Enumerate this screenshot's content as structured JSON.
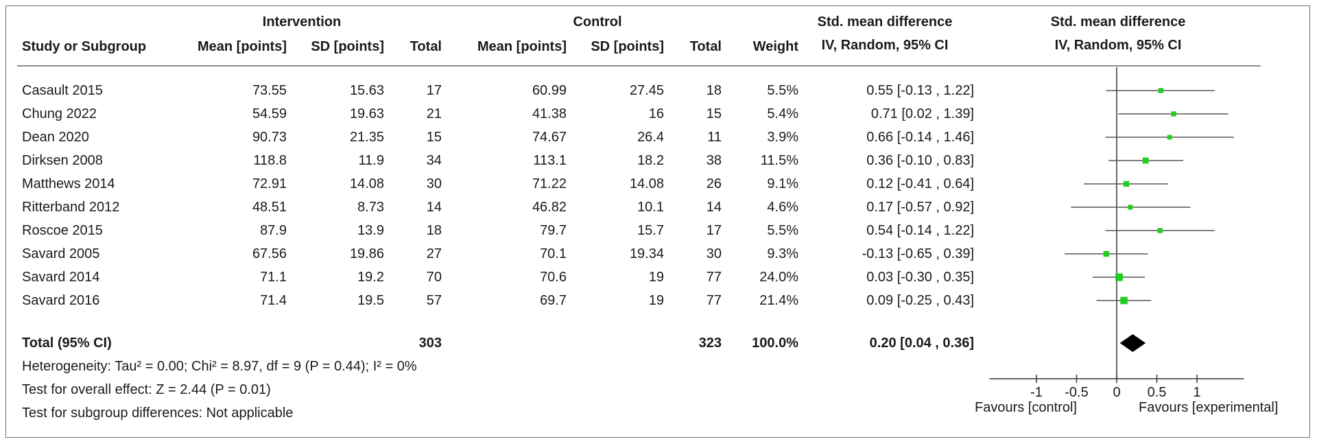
{
  "header": {
    "group_intervention": "Intervention",
    "group_control": "Control",
    "effect_title_line1": "Std. mean difference",
    "effect_title_line2": "IV, Random, 95% CI",
    "plot_title_line1": "Std. mean difference",
    "plot_title_line2": "IV, Random, 95% CI",
    "col_study": "Study or Subgroup",
    "col_int_mean": "Mean [points]",
    "col_int_sd": "SD [points]",
    "col_int_total": "Total",
    "col_ctl_mean": "Mean [points]",
    "col_ctl_sd": "SD [points]",
    "col_ctl_total": "Total",
    "col_weight": "Weight"
  },
  "studies": [
    {
      "name": "Casault 2015",
      "int_mean": "73.55",
      "int_sd": "15.63",
      "int_total": "17",
      "ctl_mean": "60.99",
      "ctl_sd": "27.45",
      "ctl_total": "18",
      "weight": "5.5%",
      "ci_text": "0.55 [-0.13 , 1.22]"
    },
    {
      "name": "Chung 2022",
      "int_mean": "54.59",
      "int_sd": "19.63",
      "int_total": "21",
      "ctl_mean": "41.38",
      "ctl_sd": "16",
      "ctl_total": "15",
      "weight": "5.4%",
      "ci_text": "0.71 [0.02 , 1.39]"
    },
    {
      "name": "Dean 2020",
      "int_mean": "90.73",
      "int_sd": "21.35",
      "int_total": "15",
      "ctl_mean": "74.67",
      "ctl_sd": "26.4",
      "ctl_total": "11",
      "weight": "3.9%",
      "ci_text": "0.66 [-0.14 , 1.46]"
    },
    {
      "name": "Dirksen 2008",
      "int_mean": "118.8",
      "int_sd": "11.9",
      "int_total": "34",
      "ctl_mean": "113.1",
      "ctl_sd": "18.2",
      "ctl_total": "38",
      "weight": "11.5%",
      "ci_text": "0.36 [-0.10 , 0.83]"
    },
    {
      "name": "Matthews 2014",
      "int_mean": "72.91",
      "int_sd": "14.08",
      "int_total": "30",
      "ctl_mean": "71.22",
      "ctl_sd": "14.08",
      "ctl_total": "26",
      "weight": "9.1%",
      "ci_text": "0.12 [-0.41 , 0.64]"
    },
    {
      "name": "Ritterband 2012",
      "int_mean": "48.51",
      "int_sd": "8.73",
      "int_total": "14",
      "ctl_mean": "46.82",
      "ctl_sd": "10.1",
      "ctl_total": "14",
      "weight": "4.6%",
      "ci_text": "0.17 [-0.57 , 0.92]"
    },
    {
      "name": "Roscoe 2015",
      "int_mean": "87.9",
      "int_sd": "13.9",
      "int_total": "18",
      "ctl_mean": "79.7",
      "ctl_sd": "15.7",
      "ctl_total": "17",
      "weight": "5.5%",
      "ci_text": "0.54 [-0.14 , 1.22]"
    },
    {
      "name": "Savard 2005",
      "int_mean": "67.56",
      "int_sd": "19.86",
      "int_total": "27",
      "ctl_mean": "70.1",
      "ctl_sd": "19.34",
      "ctl_total": "30",
      "weight": "9.3%",
      "ci_text": "-0.13 [-0.65 , 0.39]"
    },
    {
      "name": "Savard 2014",
      "int_mean": "71.1",
      "int_sd": "19.2",
      "int_total": "70",
      "ctl_mean": "70.6",
      "ctl_sd": "19",
      "ctl_total": "77",
      "weight": "24.0%",
      "ci_text": "0.03 [-0.30 , 0.35]"
    },
    {
      "name": "Savard 2016",
      "int_mean": "71.4",
      "int_sd": "19.5",
      "int_total": "57",
      "ctl_mean": "69.7",
      "ctl_sd": "19",
      "ctl_total": "77",
      "weight": "21.4%",
      "ci_text": "0.09 [-0.25 , 0.43]"
    }
  ],
  "total": {
    "label": "Total (95% CI)",
    "int_total": "303",
    "ctl_total": "323",
    "weight": "100.0%",
    "ci_text": "0.20 [0.04 , 0.36]"
  },
  "footer": {
    "heterogeneity": "Heterogeneity: Tau² = 0.00; Chi² = 8.97, df = 9 (P = 0.44); I² = 0%",
    "overall_effect": "Test for overall effect: Z = 2.44 (P = 0.01)",
    "subgroup": "Test for subgroup differences: Not applicable"
  },
  "axis": {
    "favours_left": "Favours [control]",
    "favours_right": "Favours [experimental]"
  },
  "colors": {
    "point": "#22cc22",
    "line": "#555555",
    "diamond": "#000000"
  },
  "chart_data": {
    "type": "scatter",
    "subtype": "forest-plot",
    "title": "Std. mean difference IV, Random, 95% CI",
    "xlabel": "",
    "ylabel": "",
    "xlim": [
      -1.5,
      1.5
    ],
    "xticks": [
      -1,
      -0.5,
      0,
      0.5,
      1
    ],
    "xtick_labels": [
      "-1",
      "-0.5",
      "0",
      "0.5",
      "1"
    ],
    "series": [
      {
        "categories": [
          "Casault 2015",
          "Chung 2022",
          "Dean 2020",
          "Dirksen 2008",
          "Matthews 2014",
          "Ritterband 2012",
          "Roscoe 2015",
          "Savard 2005",
          "Savard 2014",
          "Savard 2016"
        ],
        "estimate": [
          0.55,
          0.71,
          0.66,
          0.36,
          0.12,
          0.17,
          0.54,
          -0.13,
          0.03,
          0.09
        ],
        "ci_low": [
          -0.13,
          0.02,
          -0.14,
          -0.1,
          -0.41,
          -0.57,
          -0.14,
          -0.65,
          -0.3,
          -0.25
        ],
        "ci_high": [
          1.22,
          1.39,
          1.46,
          0.83,
          0.64,
          0.92,
          1.22,
          0.39,
          0.35,
          0.43
        ],
        "weight": [
          5.5,
          5.4,
          3.9,
          11.5,
          9.1,
          4.6,
          5.5,
          9.3,
          24.0,
          21.4
        ]
      }
    ],
    "pooled": {
      "estimate": 0.2,
      "ci_low": 0.04,
      "ci_high": 0.36
    },
    "grid": false
  }
}
